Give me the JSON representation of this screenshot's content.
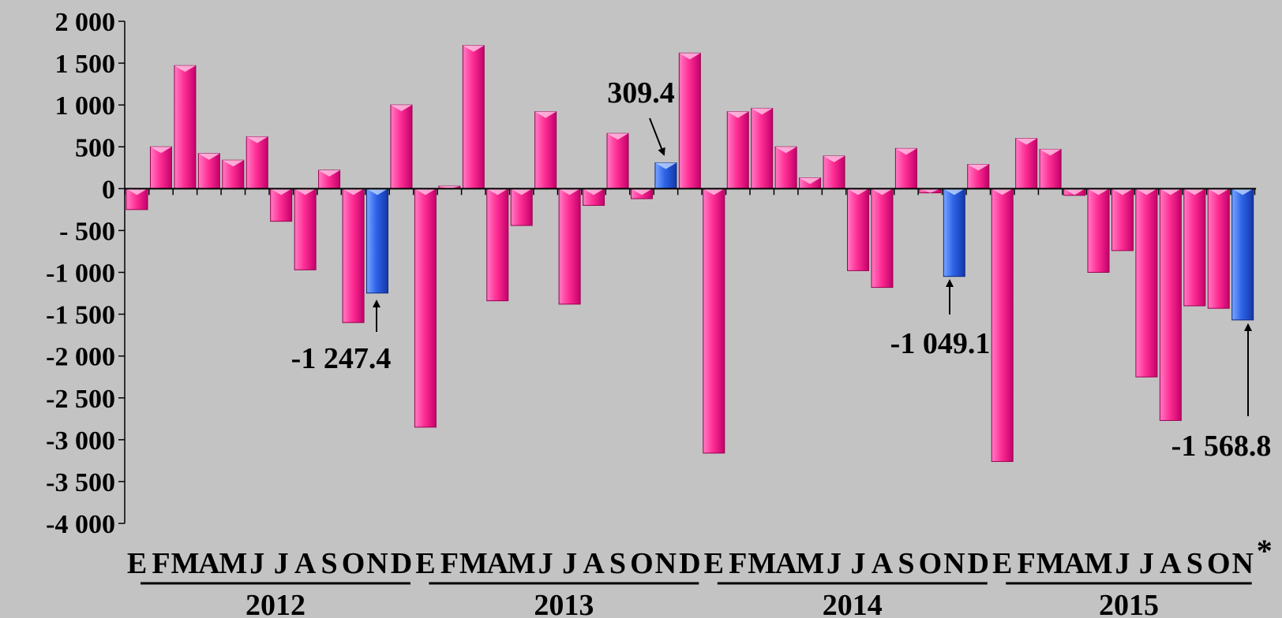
{
  "chart_data": {
    "type": "bar",
    "ylim": [
      -4000,
      2000
    ],
    "yticks": [
      2000,
      1500,
      1000,
      500,
      0,
      -500,
      -1000,
      -1500,
      -2000,
      -2500,
      -3000,
      -3500,
      -4000
    ],
    "ytick_labels": [
      "2 000",
      "1 500",
      "1 000",
      "500",
      "0",
      "- 500",
      "-1 000",
      "-1 500",
      "-2 000",
      "-2 500",
      "-3 000",
      "-3 500",
      "-4 000"
    ],
    "years": [
      "2012",
      "2013",
      "2014",
      "2015"
    ],
    "month_labels": [
      "E",
      "F",
      "M",
      "A",
      "M",
      "J",
      "J",
      "A",
      "S",
      "O",
      "N",
      "D",
      "E",
      "F",
      "M",
      "A",
      "M",
      "J",
      "J",
      "A",
      "S",
      "O",
      "N",
      "D",
      "E",
      "F",
      "M",
      "A",
      "M",
      "J",
      "J",
      "A",
      "S",
      "O",
      "N",
      "D",
      "E",
      "F",
      "M",
      "A",
      "M",
      "J",
      "J",
      "A",
      "S",
      "O",
      "N"
    ],
    "values": [
      -250,
      500,
      1470,
      420,
      340,
      620,
      -390,
      -970,
      220,
      -1600,
      -1247.4,
      1000,
      -2850,
      30,
      1710,
      -1340,
      -440,
      920,
      -1380,
      -200,
      660,
      -120,
      309.4,
      1620,
      -3160,
      920,
      960,
      500,
      130,
      390,
      -980,
      -1180,
      480,
      -50,
      -1049.1,
      290,
      -3260,
      600,
      470,
      -80,
      -1000,
      -740,
      -2250,
      -2770,
      -1400,
      -1430,
      -1568.8
    ],
    "highlight_indices": [
      10,
      22,
      34,
      46
    ],
    "colors": {
      "primary": "#ff3399",
      "highlight": "#3366ee",
      "background": "#c3c3c3"
    },
    "annotations": [
      {
        "bar_index": 10,
        "label": "-1 247.4"
      },
      {
        "bar_index": 22,
        "label": "309.4"
      },
      {
        "bar_index": 34,
        "label": "-1 049.1"
      },
      {
        "bar_index": 46,
        "label": "-1 568.8"
      }
    ],
    "note_mark": "*",
    "grid": false
  }
}
